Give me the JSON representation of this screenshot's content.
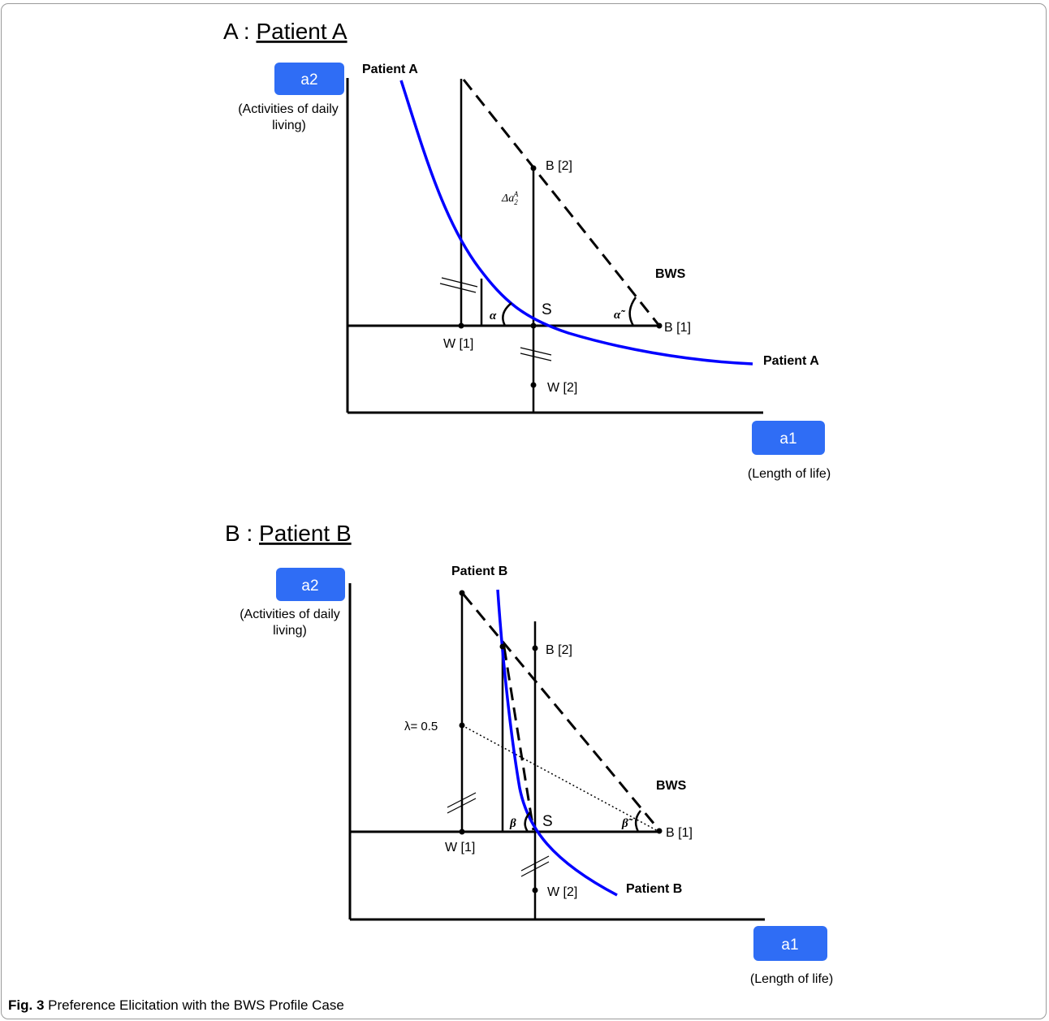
{
  "caption": {
    "label": "Fig. 3",
    "text": " Preference Elicitation with the BWS Profile Case"
  },
  "panel_a": {
    "title_prefix": "A : ",
    "title_name": "Patient A",
    "y_badge": "a2",
    "y_desc_line1": "(Activities of daily",
    "y_desc_line2": "living)",
    "x_badge": "a1",
    "x_desc": "(Length of life)",
    "curve_label_top": "Patient A",
    "curve_label_right": "Patient A",
    "point_b2": "B [2]",
    "point_b1": "B [1]",
    "point_s": "S",
    "point_w1": "W [1]",
    "point_w2": "W [2]",
    "bws": "BWS",
    "delta": "Δa",
    "delta_sub": "2",
    "delta_sup": "A",
    "angle": "α",
    "angle_tilde": "α̃"
  },
  "panel_b": {
    "title_prefix": "B : ",
    "title_name": "Patient B",
    "y_badge": "a2",
    "y_desc_line1": "(Activities of daily",
    "y_desc_line2": "living)",
    "x_badge": "a1",
    "x_desc": "(Length of life)",
    "curve_label_top": "Patient B",
    "curve_label_right": "Patient B",
    "point_b2": "B [2]",
    "point_b1": "B [1]",
    "point_s": "S",
    "point_w1": "W [1]",
    "point_w2": "W [2]",
    "bws": "BWS",
    "lambda": "λ= 0.5",
    "angle": "β",
    "angle_tilde": "β̃"
  },
  "colors": {
    "curve": "#0000ff",
    "badge": "#2f6df5",
    "badge_text": "#ffffff"
  }
}
